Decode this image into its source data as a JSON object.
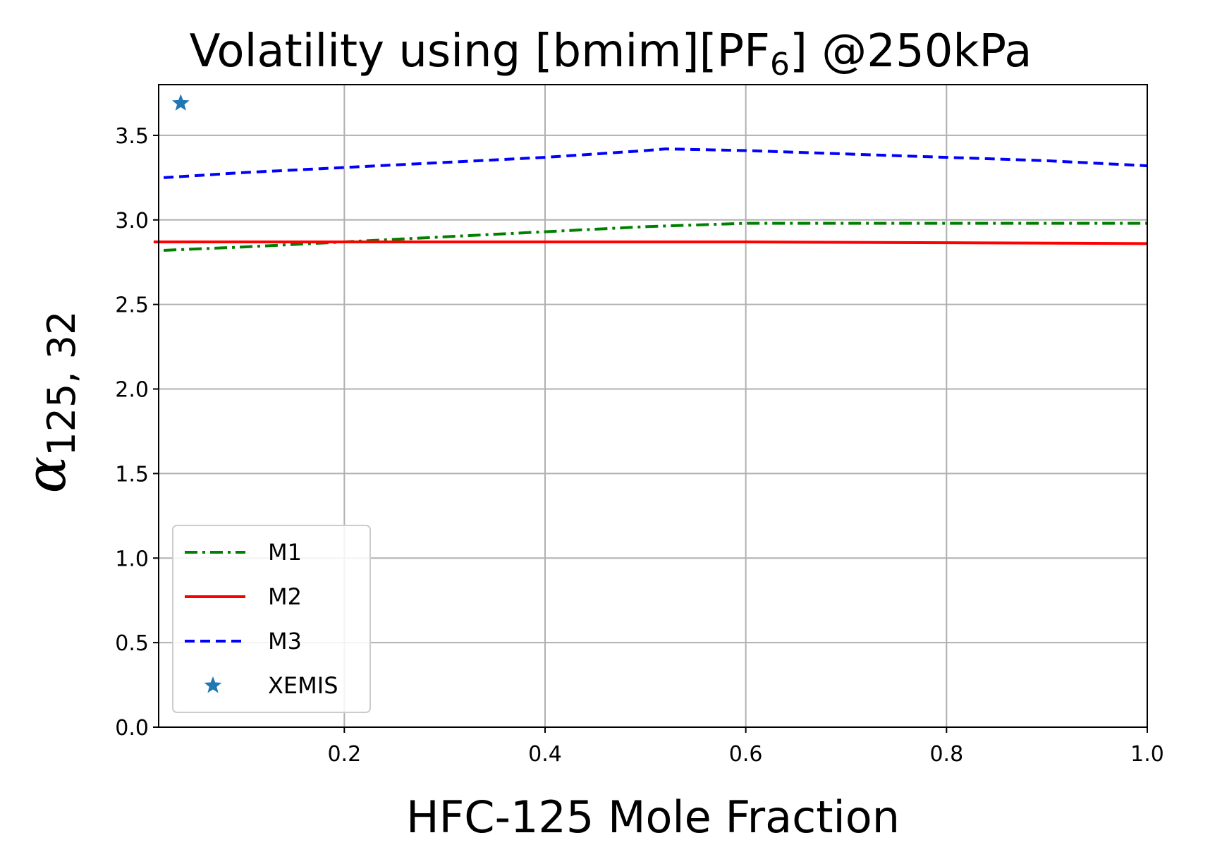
{
  "chart_data": {
    "type": "line",
    "title": "Volatility using [bmim][PF",
    "title_sub": "6",
    "title_suffix": "] @250kPa",
    "xlabel": "HFC-125 Mole Fraction",
    "ylabel_main": "α",
    "ylabel_sub": "125, 32",
    "xlim": [
      0.015,
      1.0
    ],
    "ylim": [
      0.0,
      3.8
    ],
    "xticks": [
      0.2,
      0.4,
      0.6,
      0.8,
      1.0
    ],
    "xtick_labels": [
      "0.2",
      "0.4",
      "0.6",
      "0.8",
      "1.0"
    ],
    "yticks": [
      0.0,
      0.5,
      1.0,
      1.5,
      2.0,
      2.5,
      3.0,
      3.5
    ],
    "ytick_labels": [
      "0.0",
      "0.5",
      "1.0",
      "1.5",
      "2.0",
      "2.5",
      "3.0",
      "3.5"
    ],
    "grid": true,
    "legend_position": "lower-left",
    "series": [
      {
        "name": "M1",
        "color": "#008000",
        "style": "dashdot",
        "x": [
          0.02,
          0.1,
          0.2,
          0.3,
          0.4,
          0.5,
          0.6,
          0.7,
          0.8,
          0.9,
          1.0
        ],
        "y": [
          2.82,
          2.84,
          2.87,
          2.9,
          2.93,
          2.96,
          2.98,
          2.98,
          2.98,
          2.98,
          2.98
        ]
      },
      {
        "name": "M2",
        "color": "#ff0000",
        "style": "solid",
        "x": [
          0.01,
          0.2,
          0.4,
          0.6,
          0.8,
          1.0
        ],
        "y": [
          2.87,
          2.87,
          2.87,
          2.87,
          2.865,
          2.86
        ]
      },
      {
        "name": "M3",
        "color": "#0000ff",
        "style": "dashed",
        "x": [
          0.02,
          0.1,
          0.2,
          0.3,
          0.4,
          0.5,
          0.52,
          0.6,
          0.7,
          0.8,
          0.9,
          1.0
        ],
        "y": [
          3.25,
          3.28,
          3.31,
          3.34,
          3.37,
          3.41,
          3.42,
          3.41,
          3.39,
          3.37,
          3.35,
          3.32
        ]
      },
      {
        "name": "XEMIS",
        "color": "#1f77b4",
        "style": "marker-star",
        "x": [
          0.037
        ],
        "y": [
          3.69
        ]
      }
    ]
  }
}
